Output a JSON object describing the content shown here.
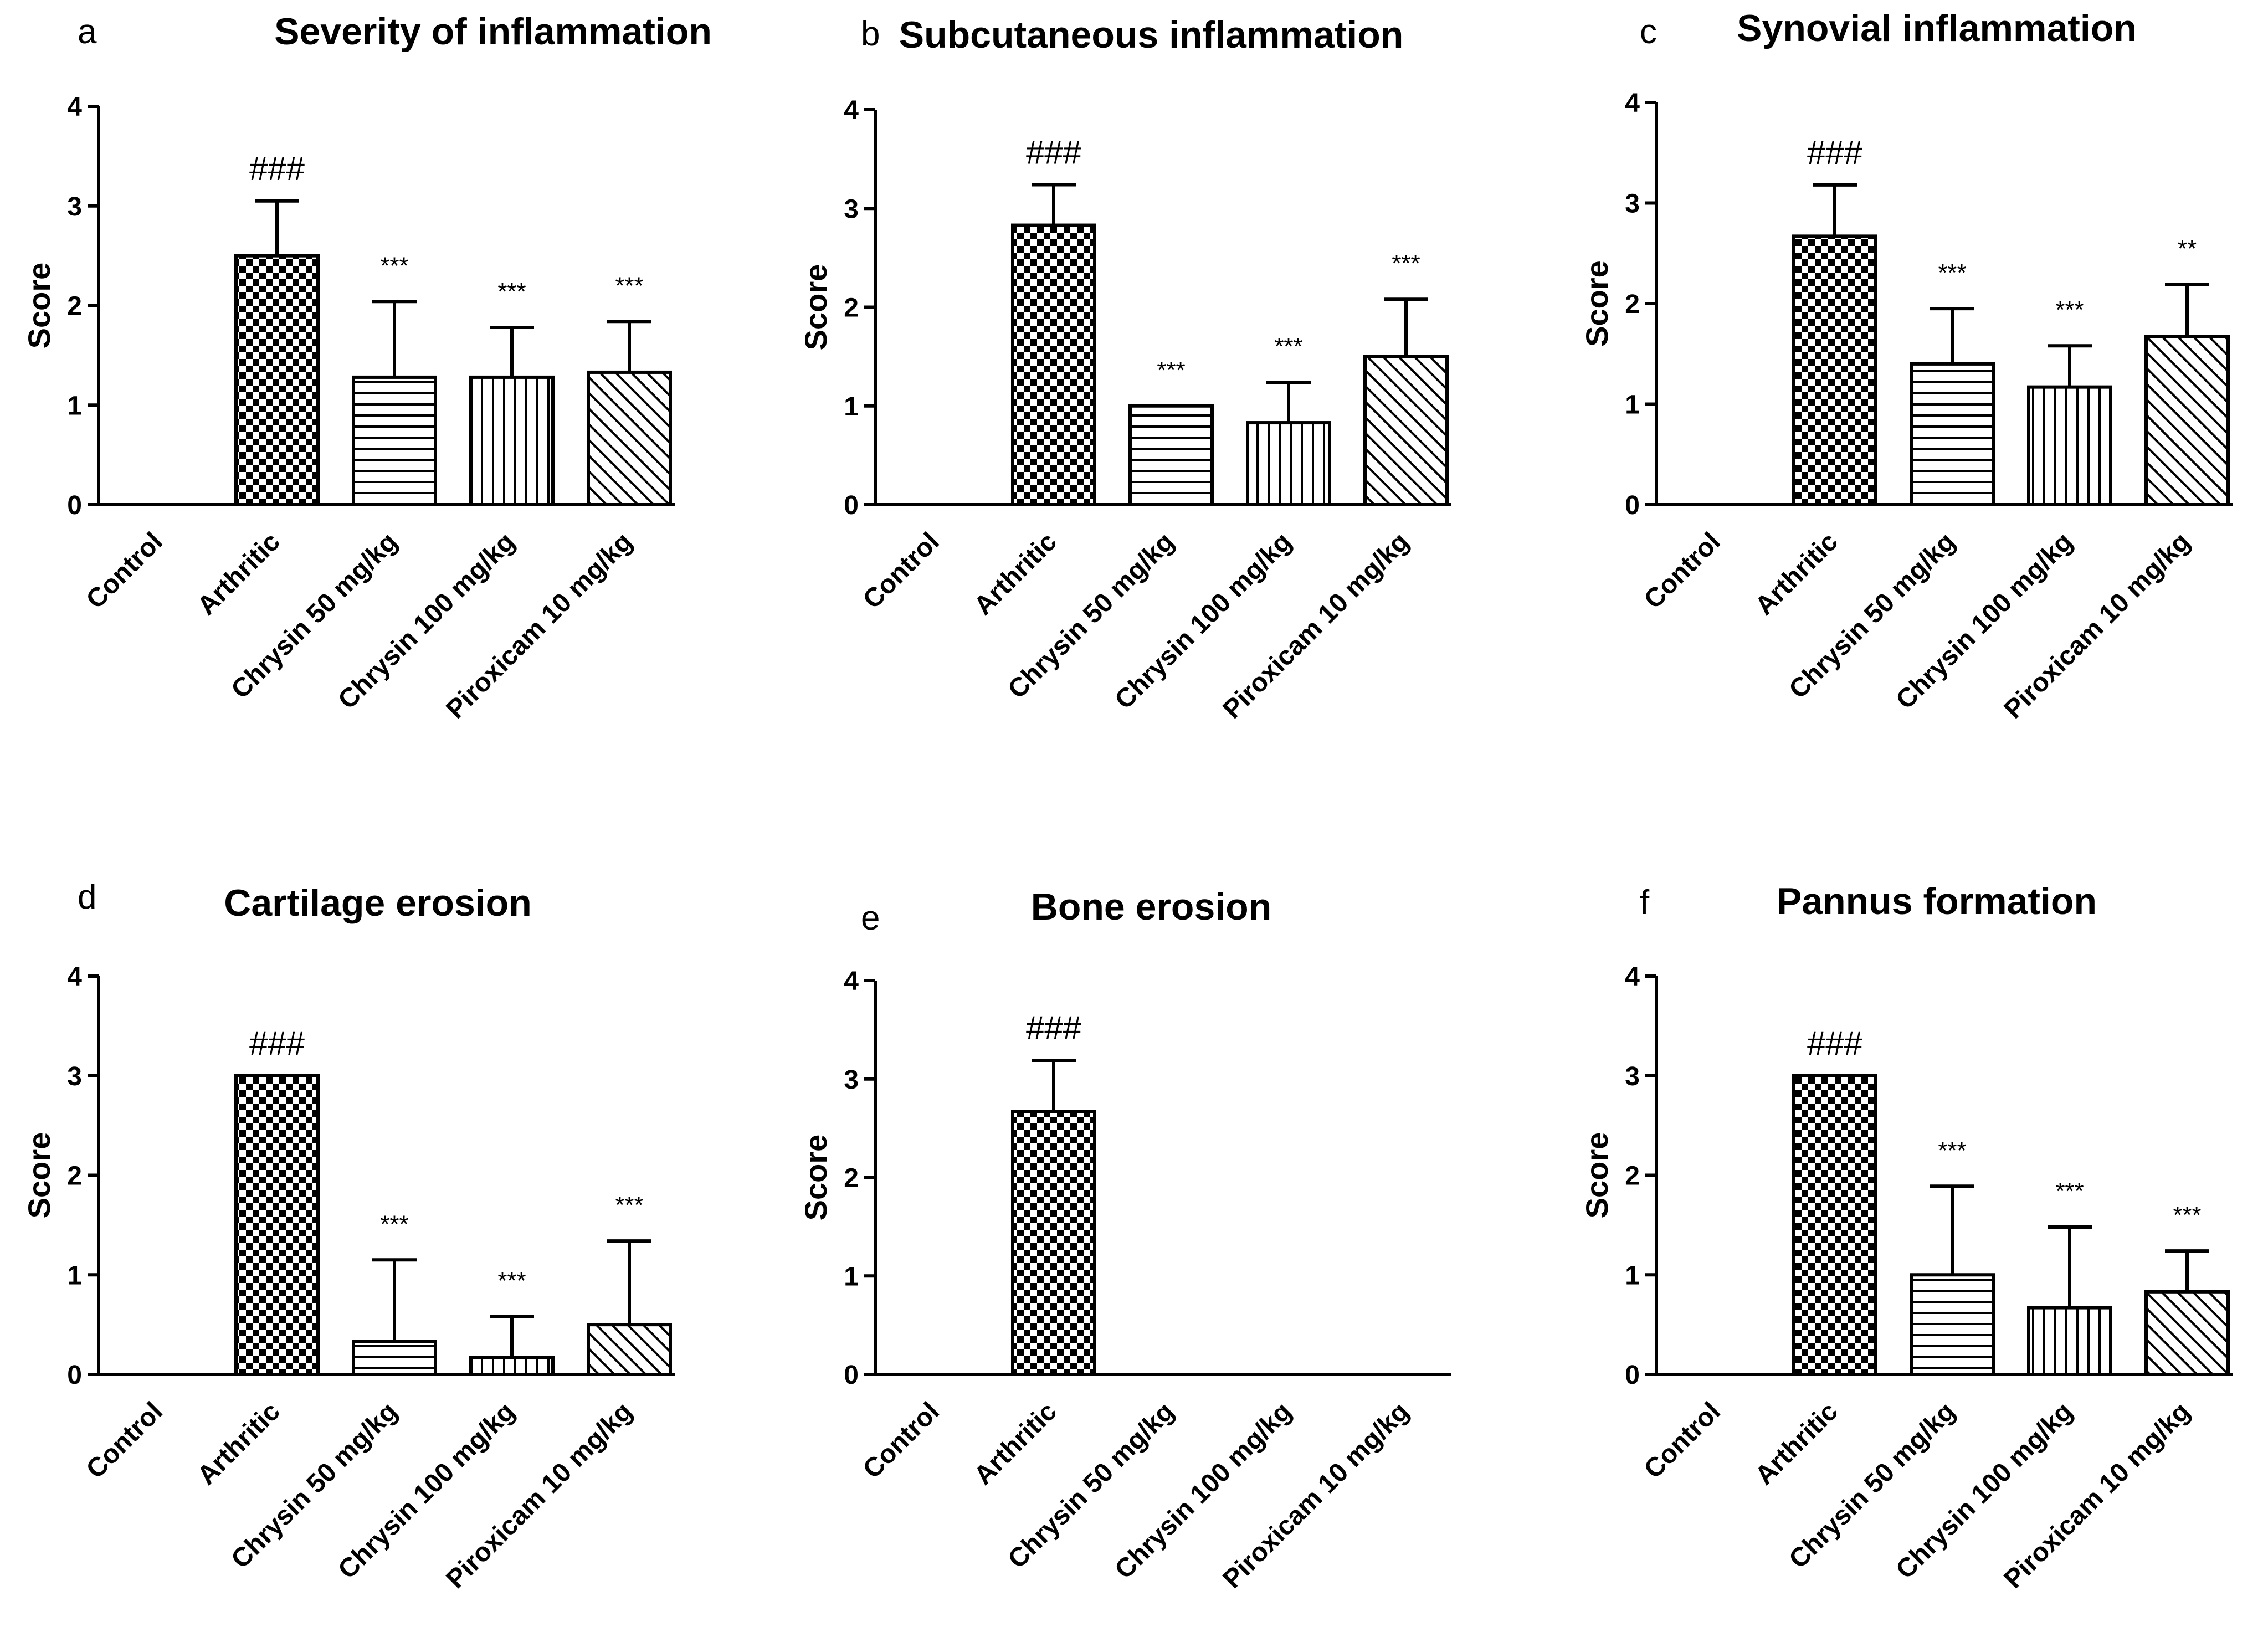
{
  "chart_data": [
    {
      "panel": "a",
      "type": "bar",
      "title": "Severity of inflammation",
      "ylabel": "Score",
      "ylim": [
        0,
        4
      ],
      "yticks": [
        0,
        1,
        2,
        3,
        4
      ],
      "categories": [
        "Control",
        "Arthritic",
        "Chrysin 50 mg/kg",
        "Chrysin 100 mg/kg",
        "Piroxicam 10 mg/kg"
      ],
      "values": [
        0,
        2.5,
        1.28,
        1.28,
        1.33
      ],
      "errors": [
        0,
        0.55,
        0.76,
        0.5,
        0.51
      ],
      "annotations": [
        "",
        "###",
        "***",
        "***",
        "***"
      ],
      "patterns": [
        "none",
        "checker",
        "horizontal",
        "vertical",
        "diagonal"
      ]
    },
    {
      "panel": "b",
      "type": "bar",
      "title": "Subcutaneous inflammation",
      "ylabel": "Score",
      "ylim": [
        0,
        4
      ],
      "yticks": [
        0,
        1,
        2,
        3,
        4
      ],
      "categories": [
        "Control",
        "Arthritic",
        "Chrysin 50 mg/kg",
        "Chrysin 100 mg/kg",
        "Piroxicam 10 mg/kg"
      ],
      "values": [
        0,
        2.83,
        1.0,
        0.83,
        1.5
      ],
      "errors": [
        0,
        0.41,
        0,
        0.41,
        0.58
      ],
      "annotations": [
        "",
        "###",
        "***",
        "***",
        "***"
      ],
      "patterns": [
        "none",
        "checker",
        "horizontal",
        "vertical",
        "diagonal"
      ]
    },
    {
      "panel": "c",
      "type": "bar",
      "title": "Synovial inflammation",
      "ylabel": "Score",
      "ylim": [
        0,
        4
      ],
      "yticks": [
        0,
        1,
        2,
        3,
        4
      ],
      "categories": [
        "Control",
        "Arthritic",
        "Chrysin 50 mg/kg",
        "Chrysin 100 mg/kg",
        "Piroxicam 10 mg/kg"
      ],
      "values": [
        0,
        2.67,
        1.4,
        1.17,
        1.67
      ],
      "errors": [
        0,
        0.51,
        0.55,
        0.41,
        0.52
      ],
      "annotations": [
        "",
        "###",
        "***",
        "***",
        "**"
      ],
      "patterns": [
        "none",
        "checker",
        "horizontal",
        "vertical",
        "diagonal"
      ]
    },
    {
      "panel": "d",
      "type": "bar",
      "title": "Cartilage erosion",
      "ylabel": "Score",
      "ylim": [
        0,
        4
      ],
      "yticks": [
        0,
        1,
        2,
        3,
        4
      ],
      "categories": [
        "Control",
        "Arthritic",
        "Chrysin 50 mg/kg",
        "Chrysin 100 mg/kg",
        "Piroxicam 10 mg/kg"
      ],
      "values": [
        0,
        3.0,
        0.33,
        0.17,
        0.5
      ],
      "errors": [
        0,
        0,
        0.82,
        0.41,
        0.84
      ],
      "annotations": [
        "",
        "###",
        "***",
        "***",
        "***"
      ],
      "patterns": [
        "none",
        "checker",
        "horizontal",
        "vertical",
        "diagonal"
      ]
    },
    {
      "panel": "e",
      "type": "bar",
      "title": "Bone erosion",
      "ylabel": "Score",
      "ylim": [
        0,
        4
      ],
      "yticks": [
        0,
        1,
        2,
        3,
        4
      ],
      "categories": [
        "Control",
        "Arthritic",
        "Chrysin 50 mg/kg",
        "Chrysin 100 mg/kg",
        "Piroxicam 10 mg/kg"
      ],
      "values": [
        0,
        2.67,
        0,
        0,
        0
      ],
      "errors": [
        0,
        0.52,
        0,
        0,
        0
      ],
      "annotations": [
        "",
        "###",
        "",
        "",
        ""
      ],
      "patterns": [
        "none",
        "checker",
        "horizontal",
        "vertical",
        "diagonal"
      ]
    },
    {
      "panel": "f",
      "type": "bar",
      "title": "Pannus formation",
      "ylabel": "Score",
      "ylim": [
        0,
        4
      ],
      "yticks": [
        0,
        1,
        2,
        3,
        4
      ],
      "categories": [
        "Control",
        "Arthritic",
        "Chrysin 50 mg/kg",
        "Chrysin 100 mg/kg",
        "Piroxicam 10 mg/kg"
      ],
      "values": [
        0,
        3.0,
        1.0,
        0.67,
        0.83
      ],
      "errors": [
        0,
        0,
        0.89,
        0.81,
        0.41
      ],
      "annotations": [
        "",
        "###",
        "***",
        "***",
        "***"
      ],
      "patterns": [
        "none",
        "checker",
        "horizontal",
        "vertical",
        "diagonal"
      ]
    }
  ]
}
